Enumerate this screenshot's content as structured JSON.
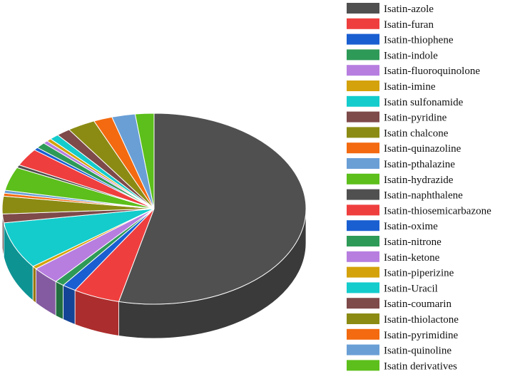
{
  "chart_data": {
    "type": "pie",
    "style": "3d",
    "legend_position": "right",
    "categories": [
      "Isatin-azole",
      "Isatin-furan",
      "Isatin-thiophene",
      "Isatin-indole",
      "Isatin-fluoroquinolone",
      "Isatin-imine",
      "Isatin sulfonamide",
      "Isatin-pyridine",
      "Isatin chalcone",
      "Isatin-quinazoline",
      "Isatin-pthalazine",
      "Isatin-hydrazide",
      "Isatin-naphthalene",
      "Isatin-thiosemicarbazone",
      "Isatin-oxime",
      "Isatin-nitrone",
      "Isatin-ketone",
      "Isatin-piperizine",
      "Isatin-Uracil",
      "Isatin-coumarin",
      "Isatin-thiolactone",
      "Isatin-pyrimidine",
      "Isatin-quinoline",
      "Isatin derivatives"
    ],
    "values": [
      54.0,
      5.0,
      1.5,
      1.0,
      3.0,
      0.5,
      8.0,
      1.5,
      3.0,
      0.5,
      0.5,
      4.0,
      0.5,
      3.0,
      0.5,
      1.0,
      0.5,
      0.5,
      1.0,
      1.5,
      3.0,
      2.0,
      2.5,
      2.0
    ],
    "colors": [
      "#505050",
      "#ef3e3e",
      "#1a5fd1",
      "#2e9a57",
      "#b77ee0",
      "#d4a20a",
      "#14cccc",
      "#7e4a4a",
      "#8b8b14",
      "#f36a10",
      "#6a9fd6",
      "#5cbf1b",
      "#505050",
      "#ef3e3e",
      "#1a5fd1",
      "#2e9a57",
      "#b77ee0",
      "#d4a20a",
      "#14cccc",
      "#7e4a4a",
      "#8b8b14",
      "#f36a10",
      "#6a9fd6",
      "#5cbf1b"
    ]
  }
}
